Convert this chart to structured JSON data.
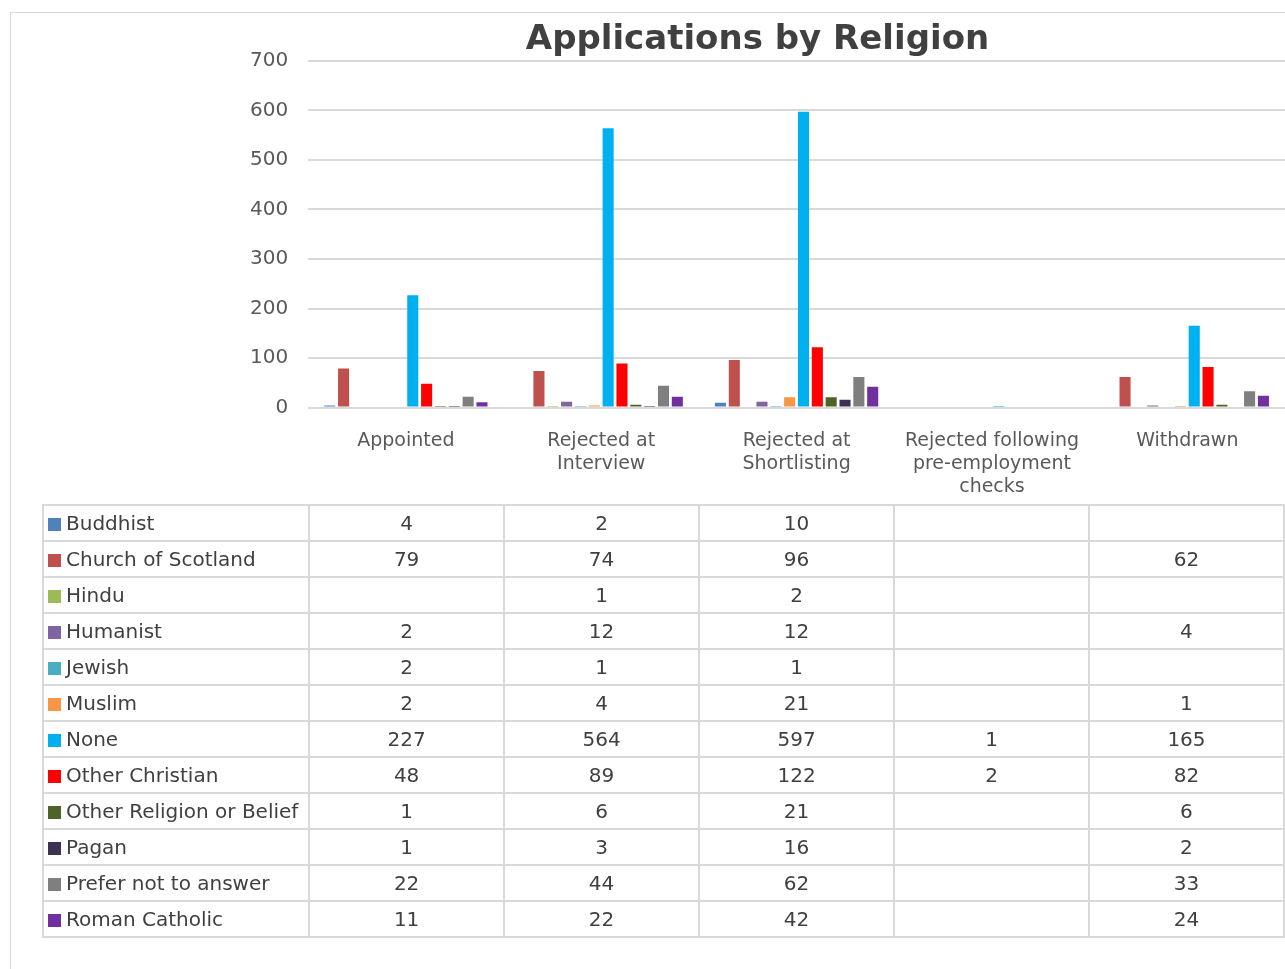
{
  "chart_data": {
    "type": "bar",
    "title": "Applications by Religion",
    "categories": [
      "Appointed",
      "Rejected at Interview",
      "Rejected at Shortlisting",
      "Rejected following pre-employment checks",
      "Withdrawn"
    ],
    "series": [
      {
        "name": "Buddhist",
        "color": "#4f81bd",
        "values": [
          4,
          2,
          10,
          null,
          null
        ]
      },
      {
        "name": "Church of Scotland",
        "color": "#c0504d",
        "values": [
          79,
          74,
          96,
          null,
          62
        ]
      },
      {
        "name": "Hindu",
        "color": "#9bbb59",
        "values": [
          null,
          1,
          2,
          null,
          null
        ]
      },
      {
        "name": "Humanist",
        "color": "#8064a2",
        "values": [
          2,
          12,
          12,
          null,
          4
        ]
      },
      {
        "name": "Jewish",
        "color": "#4bacc6",
        "values": [
          2,
          1,
          1,
          null,
          null
        ]
      },
      {
        "name": "Muslim",
        "color": "#f79646",
        "values": [
          2,
          4,
          21,
          null,
          1
        ]
      },
      {
        "name": "None",
        "color": "#00b0f0",
        "values": [
          227,
          564,
          597,
          1,
          165
        ]
      },
      {
        "name": "Other Christian",
        "color": "#ff0000",
        "values": [
          48,
          89,
          122,
          2,
          82
        ]
      },
      {
        "name": "Other Religion or Belief",
        "color": "#4f6228",
        "values": [
          1,
          6,
          21,
          null,
          6
        ]
      },
      {
        "name": "Pagan",
        "color": "#3f3151",
        "values": [
          1,
          3,
          16,
          null,
          2
        ]
      },
      {
        "name": "Prefer not to answer",
        "color": "#7f7f7f",
        "values": [
          22,
          44,
          62,
          null,
          33
        ]
      },
      {
        "name": "Roman Catholic",
        "color": "#7030a0",
        "values": [
          11,
          22,
          42,
          null,
          24
        ]
      }
    ],
    "ylim": [
      0,
      700
    ],
    "yticks": [
      0,
      100,
      200,
      300,
      400,
      500,
      600,
      700
    ],
    "grid": "y",
    "data_labels": true,
    "legend": "bottom"
  }
}
